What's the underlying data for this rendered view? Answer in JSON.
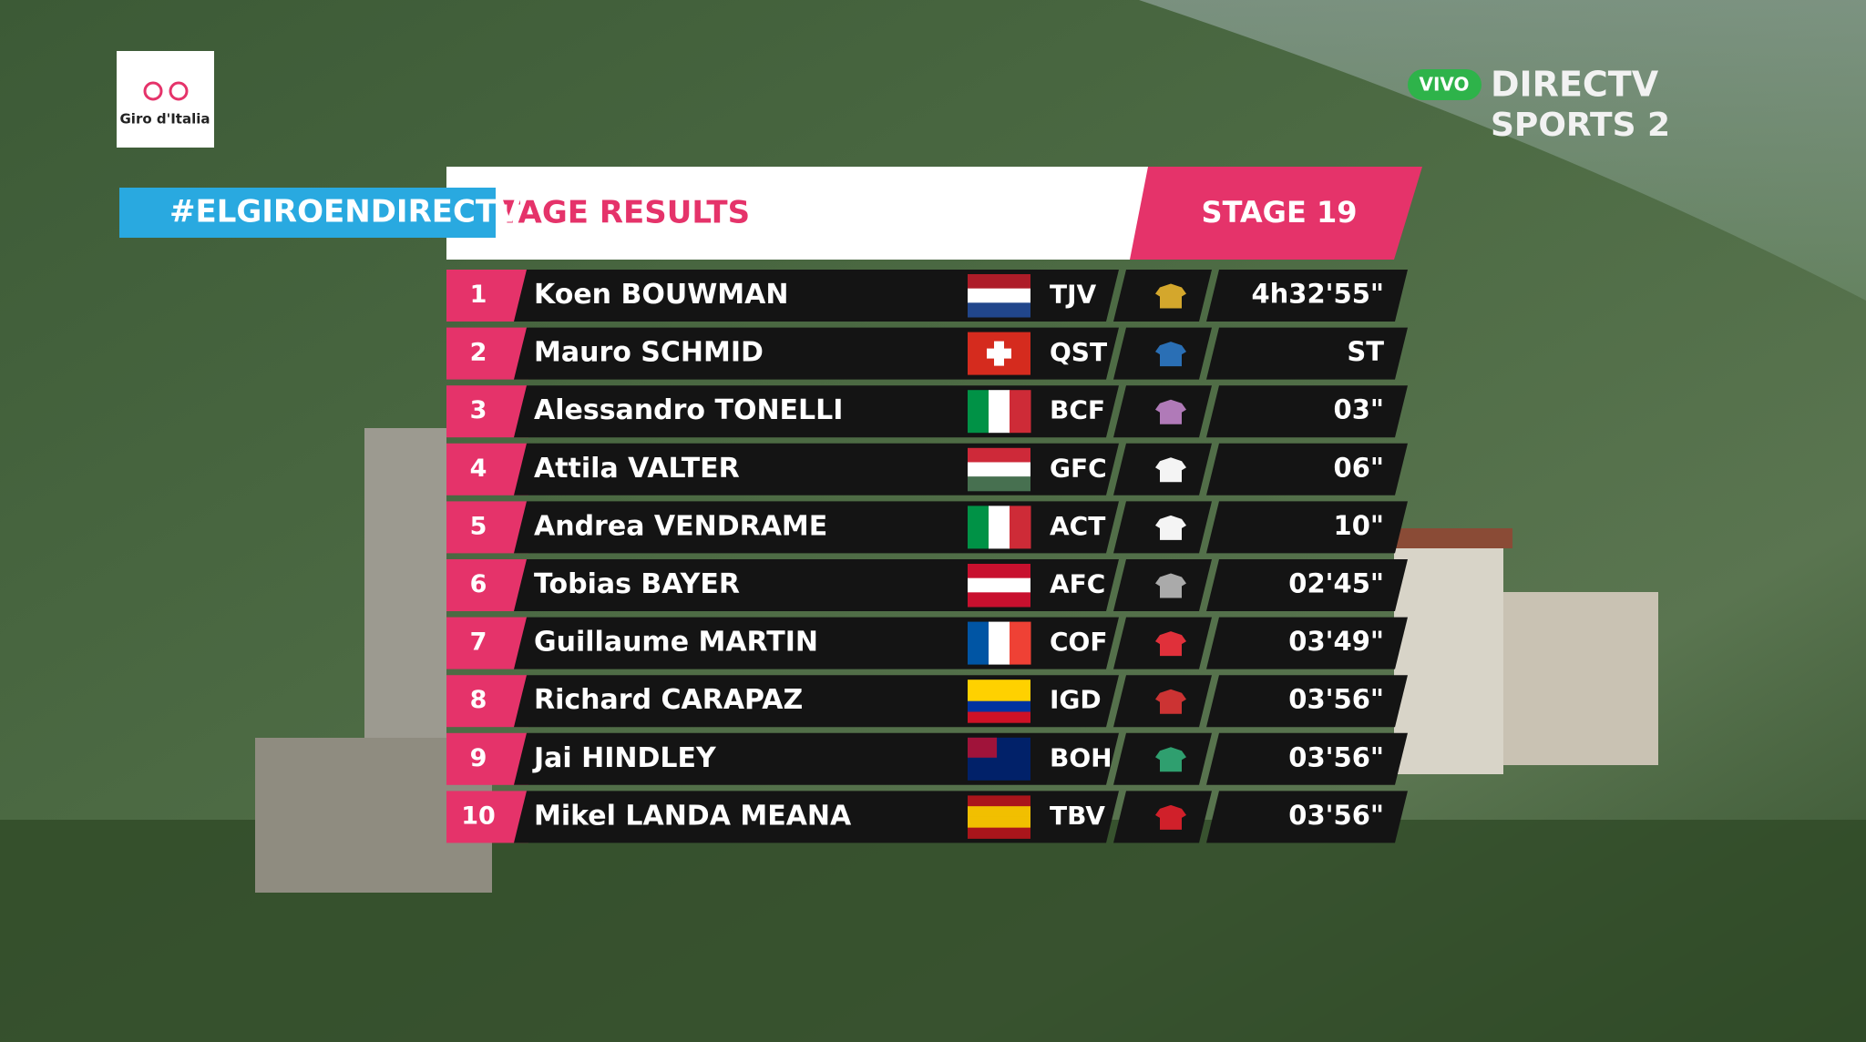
{
  "logo": {
    "text": "Giro d'Italia"
  },
  "hashtag": "#ELGIROENDIRECTV",
  "header": {
    "title": "TAGE RESULTS",
    "stage": "STAGE 19"
  },
  "broadcaster": {
    "live": "VIVO",
    "name": "DIRECTV",
    "channel": "SPORTS 2"
  },
  "table": {
    "rows": [
      {
        "rank": 1,
        "name": "Koen BOUWMAN",
        "team": "TJV",
        "time": "4h32'55\""
      },
      {
        "rank": 2,
        "name": "Mauro SCHMID",
        "team": "QST",
        "time": "ST"
      },
      {
        "rank": 3,
        "name": "Alessandro TONELLI",
        "team": "BCF",
        "time": "03\""
      },
      {
        "rank": 4,
        "name": "Attila VALTER",
        "team": "GFC",
        "time": "06\""
      },
      {
        "rank": 5,
        "name": "Andrea VENDRAME",
        "team": "ACT",
        "time": "10\""
      },
      {
        "rank": 6,
        "name": "Tobias BAYER",
        "team": "AFC",
        "time": "02'45\""
      },
      {
        "rank": 7,
        "name": "Guillaume MARTIN",
        "team": "COF",
        "time": "03'49\""
      },
      {
        "rank": 8,
        "name": "Richard CARAPAZ",
        "team": "IGD",
        "time": "03'56\""
      },
      {
        "rank": 9,
        "name": "Jai HINDLEY",
        "team": "BOH",
        "time": "03'56\""
      },
      {
        "rank": 10,
        "name": "Mikel LANDA MEANA",
        "team": "TBV",
        "time": "03'56\""
      }
    ]
  }
}
